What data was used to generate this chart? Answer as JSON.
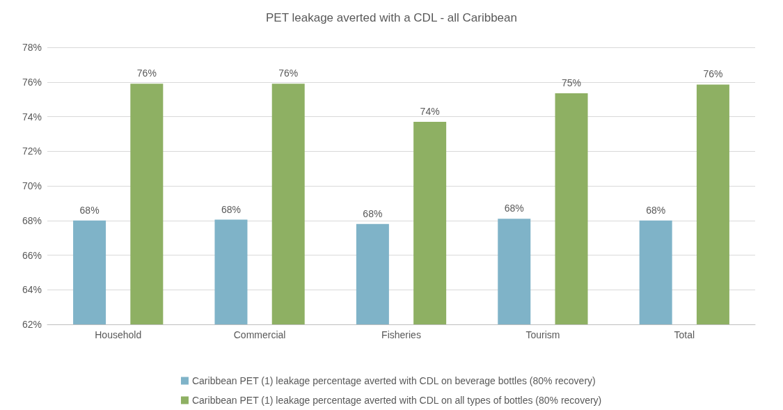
{
  "chart_data": {
    "type": "bar",
    "title": "PET leakage averted with a CDL - all Caribbean",
    "categories": [
      "Household",
      "Commercial",
      "Fisheries",
      "Tourism",
      "Total"
    ],
    "series": [
      {
        "name": "Caribbean PET (1) leakage percentage averted with CDL on beverage bottles (80% recovery)",
        "color": "#7fb3c8",
        "values": [
          68.0,
          68.05,
          67.8,
          68.1,
          68.0
        ],
        "value_labels": [
          "68%",
          "68%",
          "68%",
          "68%",
          "68%"
        ]
      },
      {
        "name": "Caribbean PET (1) leakage percentage averted with CDL on all types of bottles (80% recovery)",
        "color": "#8eb063",
        "values": [
          75.9,
          75.9,
          73.7,
          75.35,
          75.85
        ],
        "value_labels": [
          "76%",
          "76%",
          "74%",
          "75%",
          "76%"
        ]
      }
    ],
    "ylim": [
      62,
      78
    ],
    "yticks": [
      {
        "value": 62,
        "label": "62%"
      },
      {
        "value": 64,
        "label": "64%"
      },
      {
        "value": 66,
        "label": "66%"
      },
      {
        "value": 68,
        "label": "68%"
      },
      {
        "value": 70,
        "label": "70%"
      },
      {
        "value": 72,
        "label": "72%"
      },
      {
        "value": 74,
        "label": "74%"
      },
      {
        "value": 76,
        "label": "76%"
      },
      {
        "value": 78,
        "label": "78%"
      }
    ],
    "grid": "y",
    "legend": "bottom"
  }
}
